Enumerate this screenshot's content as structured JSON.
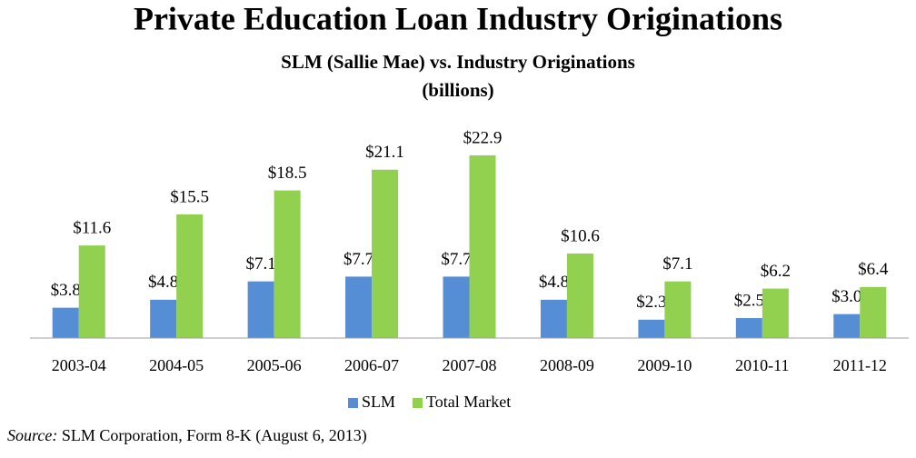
{
  "chart_data": {
    "type": "bar",
    "title": "Private Education Loan Industry Originations",
    "subtitle": [
      "SLM (Sallie Mae) vs. Industry Originations",
      "(billions)"
    ],
    "categories": [
      "2003-04",
      "2004-05",
      "2005-06",
      "2006-07",
      "2007-08",
      "2008-09",
      "2009-10",
      "2010-11",
      "2011-12"
    ],
    "series": [
      {
        "name": "SLM",
        "color": "#558ed5",
        "values": [
          3.8,
          4.8,
          7.1,
          7.7,
          7.7,
          4.8,
          2.3,
          2.5,
          3.0
        ],
        "value_labels": [
          "$3.8",
          "$4.8",
          "$7.1",
          "$7.7",
          "$7.7",
          "$4.8",
          "$2.3",
          "$2.5",
          "$3.0"
        ]
      },
      {
        "name": "Total Market",
        "color": "#92d050",
        "values": [
          11.6,
          15.5,
          18.5,
          21.1,
          22.9,
          10.6,
          7.1,
          6.2,
          6.4
        ],
        "value_labels": [
          "$11.6",
          "$15.5",
          "$18.5",
          "$21.1",
          "$22.9",
          "$10.6",
          "$7.1",
          "$6.2",
          "$6.4"
        ]
      }
    ],
    "ylim": [
      0,
      25
    ],
    "legend": "bottom",
    "source_label": "Source:",
    "source": "SLM Corporation, Form 8-K (August 6, 2013)"
  }
}
